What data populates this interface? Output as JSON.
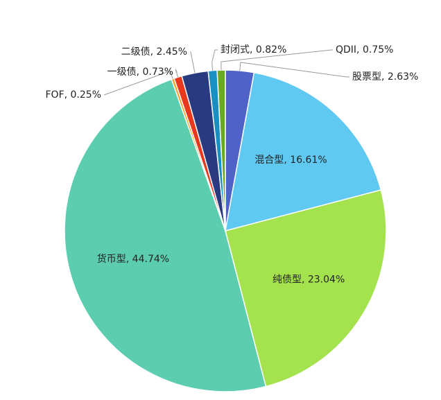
{
  "chart_data": {
    "type": "pie",
    "values": [
      2.63,
      16.61,
      23.04,
      44.74,
      0.25,
      0.73,
      2.45,
      0.82,
      0.75
    ],
    "value_labels": [
      "股票型, 2.63%",
      "混合型, 16.61%",
      "纯债型, 23.04%",
      "货币型, 44.74%",
      "FOF, 0.25%",
      "一级债, 0.73%",
      "二级债, 2.45%",
      "封闭式, 0.82%",
      "QDII, 0.75%"
    ],
    "colors": [
      "#4f62c8",
      "#5fc9f2",
      "#a5e34e",
      "#5dcdb0",
      "#f5a020",
      "#e8391e",
      "#293a80",
      "#1a8fc2",
      "#6aaa20"
    ]
  }
}
